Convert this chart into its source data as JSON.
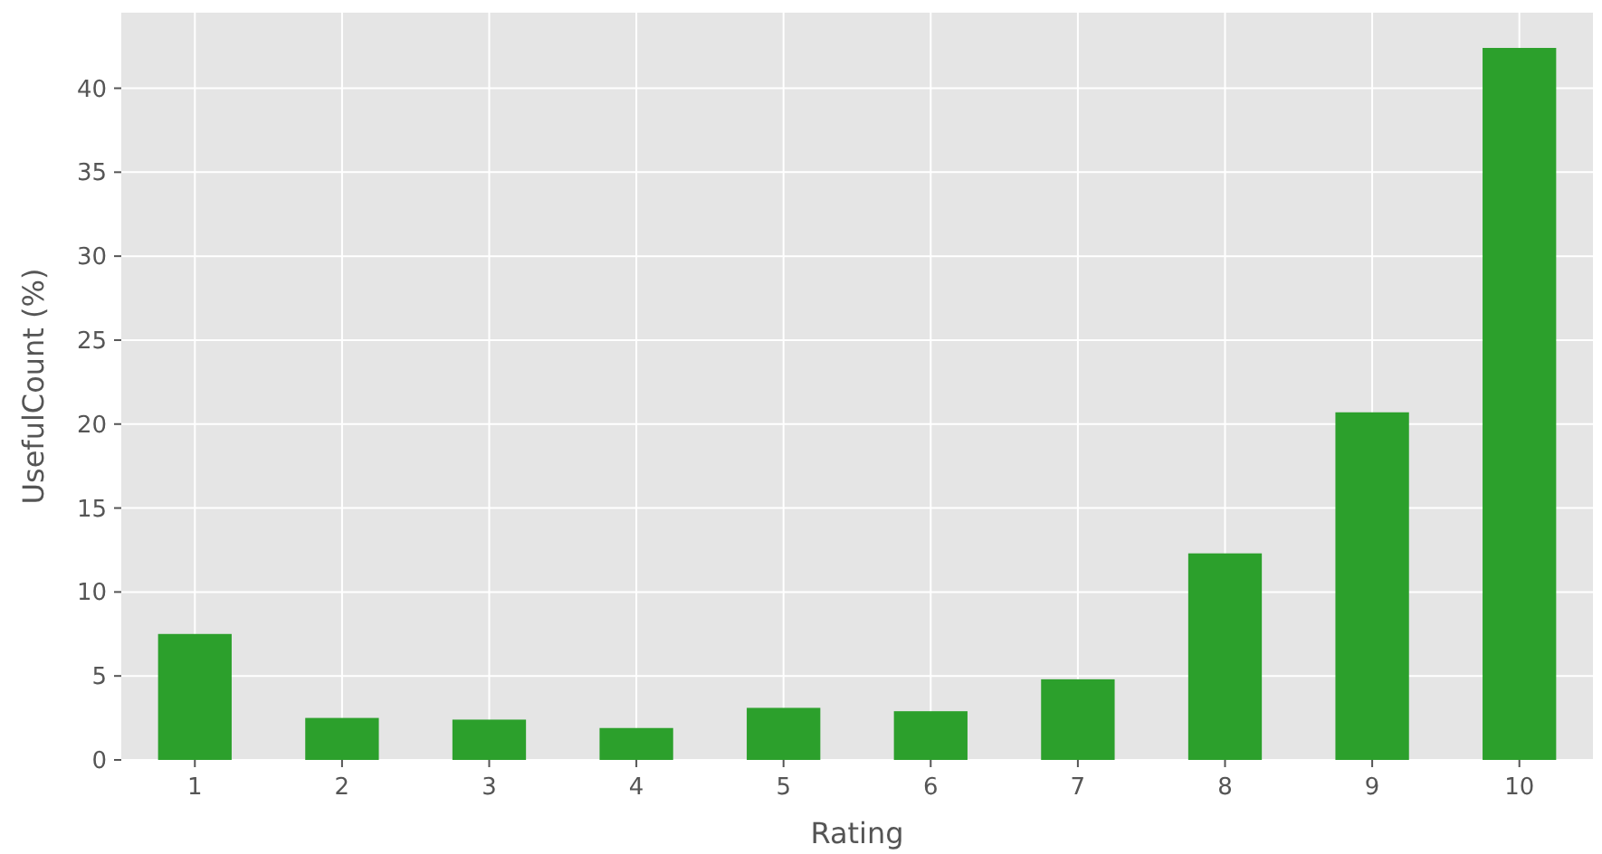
{
  "chart_data": {
    "type": "bar",
    "xlabel": "Rating",
    "ylabel": "UsefulCount (%)",
    "categories": [
      "1",
      "2",
      "3",
      "4",
      "5",
      "6",
      "7",
      "8",
      "9",
      "10"
    ],
    "values": [
      7.5,
      2.5,
      2.4,
      1.9,
      3.1,
      2.9,
      4.8,
      12.3,
      20.7,
      42.4
    ],
    "color": "#2ca02c",
    "ylim": [
      0,
      44.5
    ],
    "yticks": [
      0,
      5,
      10,
      15,
      20,
      25,
      30,
      35,
      40
    ],
    "grid": true
  }
}
